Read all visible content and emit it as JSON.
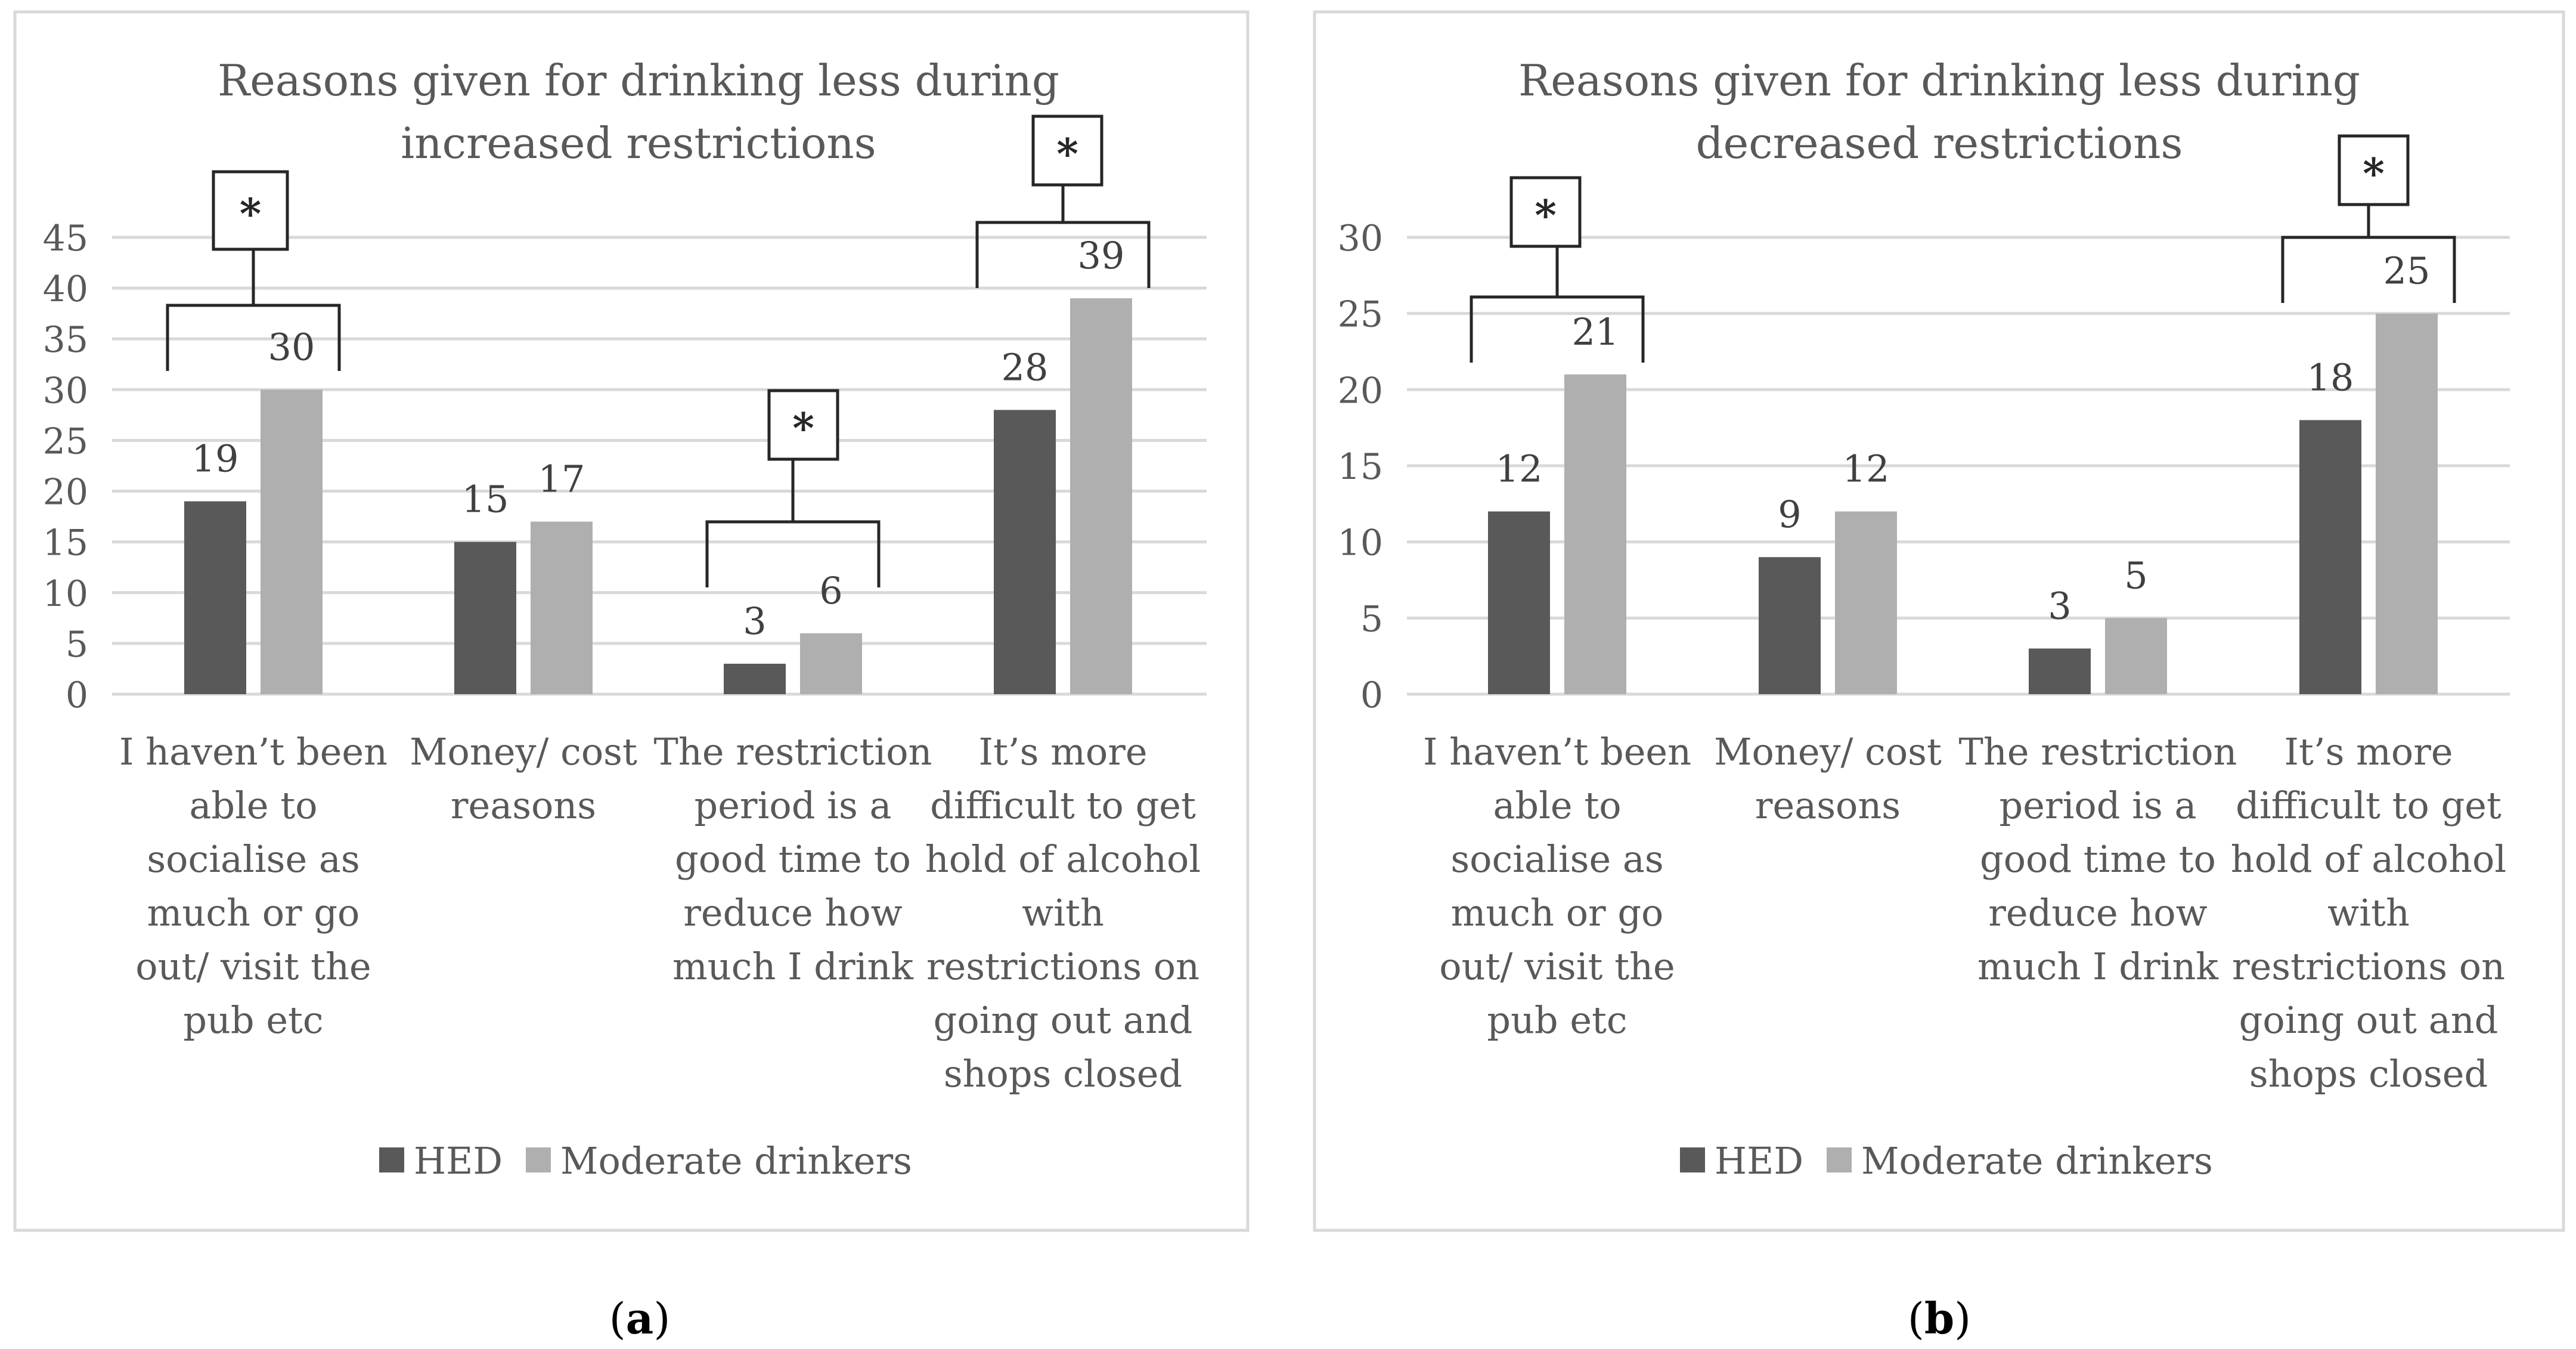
{
  "chart_data": [
    {
      "type": "bar",
      "panel_label": "(a)",
      "title": [
        "Reasons given for drinking less during",
        "increased restrictions"
      ],
      "categories": [
        [
          "I haven’t been",
          "able to",
          "socialise as",
          "much or go",
          "out/ visit the",
          "pub etc"
        ],
        [
          "Money/ cost",
          "reasons"
        ],
        [
          "The restriction",
          "period is a",
          "good time to",
          "reduce how",
          "much I drink"
        ],
        [
          "It’s more",
          "difficult to get",
          "hold of alcohol",
          "with",
          "restrictions on",
          "going out and",
          "shops closed"
        ]
      ],
      "series": [
        {
          "name": "HED",
          "values": [
            19,
            15,
            3,
            28
          ],
          "color": "#595959"
        },
        {
          "name": "Moderate drinkers",
          "values": [
            30,
            17,
            6,
            39
          ],
          "color": "#afafaf"
        }
      ],
      "ylim": [
        0,
        45
      ],
      "yticks": [
        0,
        5,
        10,
        15,
        20,
        25,
        30,
        35,
        40,
        45
      ],
      "significance": [
        {
          "category_index": 0,
          "label": "*"
        },
        {
          "category_index": 2,
          "label": "*"
        },
        {
          "category_index": 3,
          "label": "*"
        }
      ],
      "legend": "bottom",
      "xlabel": "",
      "ylabel": ""
    },
    {
      "type": "bar",
      "panel_label": "(b)",
      "title": [
        "Reasons given for drinking less during",
        "decreased restrictions"
      ],
      "categories": [
        [
          "I haven’t been",
          "able to",
          "socialise as",
          "much or go",
          "out/ visit the",
          "pub etc"
        ],
        [
          "Money/ cost",
          "reasons"
        ],
        [
          "The restriction",
          "period is a",
          "good time to",
          "reduce how",
          "much I drink"
        ],
        [
          "It’s more",
          "difficult to get",
          "hold of alcohol",
          "with",
          "restrictions on",
          "going out and",
          "shops closed"
        ]
      ],
      "series": [
        {
          "name": "HED",
          "values": [
            12,
            9,
            3,
            18
          ],
          "color": "#595959"
        },
        {
          "name": "Moderate drinkers",
          "values": [
            21,
            12,
            5,
            25
          ],
          "color": "#afafaf"
        }
      ],
      "ylim": [
        0,
        30
      ],
      "yticks": [
        0,
        5,
        10,
        15,
        20,
        25,
        30
      ],
      "significance": [
        {
          "category_index": 0,
          "label": "*"
        },
        {
          "category_index": 3,
          "label": "*"
        }
      ],
      "legend": "bottom",
      "xlabel": "",
      "ylabel": ""
    }
  ]
}
